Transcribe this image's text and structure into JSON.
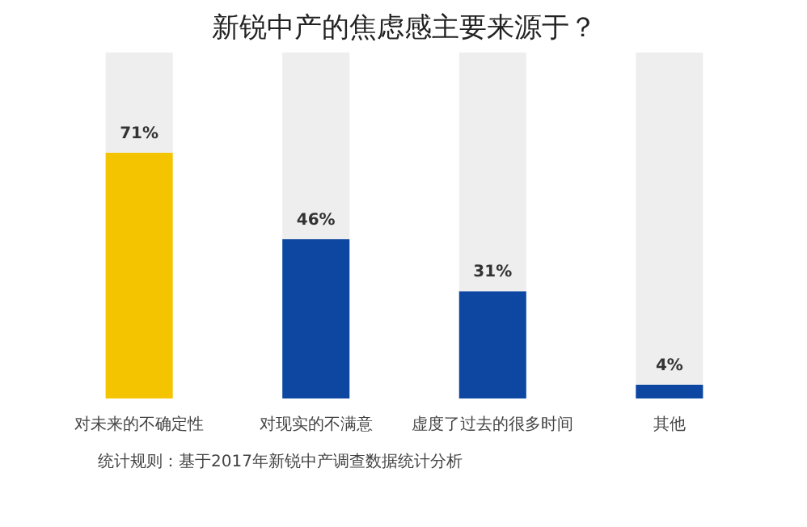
{
  "chart_data": {
    "type": "bar",
    "title": "新锐中产的焦虑感主要来源于？",
    "categories": [
      "对未来的不确定性",
      "对现实的不满意",
      "虚度了过去的很多时间",
      "其他"
    ],
    "stacked": true,
    "tick_labels": "x",
    "grid": false,
    "series": [
      {
        "colors": [
          "#f5c400",
          "#0d47a1",
          "#0d47a1",
          "#0d47a1"
        ],
        "values": [
          71,
          46,
          31,
          4
        ],
        "value_labels": [
          "71%",
          "46%",
          "31%",
          "4%"
        ]
      },
      {
        "color": "#eeeeee",
        "values": [
          29,
          54,
          69,
          96
        ]
      }
    ],
    "annotations": [
      "统计规则：基于2017年新锐中产调查数据统计分析"
    ]
  }
}
